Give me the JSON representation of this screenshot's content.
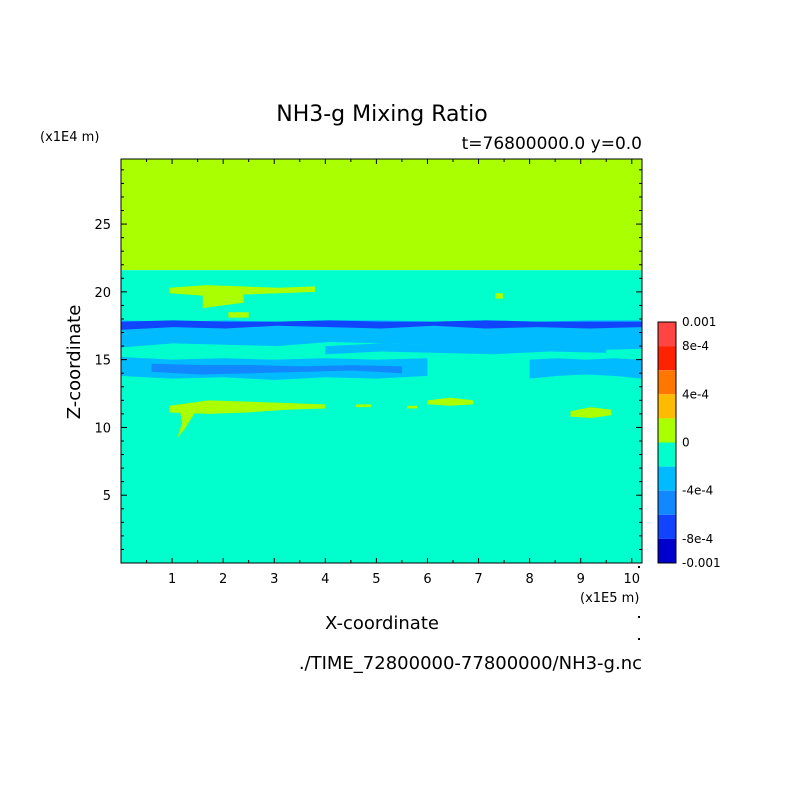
{
  "chart_data": {
    "type": "heatmap",
    "title": "NH3-g Mixing Ratio",
    "subtitle": "t=76800000.0 y=0.0",
    "xlabel": "X-coordinate",
    "ylabel": "Z-coordinate",
    "x_unit": "(x1E5 m)",
    "y_unit": "(x1E4 m)",
    "source_file": "./TIME_72800000-77800000/NH3-g.nc",
    "xlim": [
      0,
      10.2
    ],
    "ylim": [
      0,
      29.8
    ],
    "x_ticks": [
      1,
      2,
      3,
      4,
      5,
      6,
      7,
      8,
      9,
      10
    ],
    "y_ticks": [
      5,
      10,
      15,
      20,
      25
    ],
    "colorbar": {
      "min": -0.001,
      "max": 0.001,
      "tick_values": [
        0.001,
        0.0008,
        0.0004,
        0,
        -0.0004,
        -0.0008,
        -0.001
      ],
      "tick_labels": [
        "0.001",
        "8e-4",
        "4e-4",
        "0",
        "-4e-4",
        "-8e-4",
        "-0.001"
      ],
      "levels": [
        {
          "range": [
            0.0008,
            0.001
          ],
          "color": "#ff4444"
        },
        {
          "range": [
            0.0006,
            0.0008
          ],
          "color": "#ff2200"
        },
        {
          "range": [
            0.0004,
            0.0006
          ],
          "color": "#ff7700"
        },
        {
          "range": [
            0.0002,
            0.0004
          ],
          "color": "#ffbb00"
        },
        {
          "range": [
            0,
            0.0002
          ],
          "color": "#aaff00"
        },
        {
          "range": [
            -0.0002,
            0
          ],
          "color": "#00ffcc"
        },
        {
          "range": [
            -0.0004,
            -0.0002
          ],
          "color": "#00bbff"
        },
        {
          "range": [
            -0.0006,
            -0.0004
          ],
          "color": "#1188ff"
        },
        {
          "range": [
            -0.0008,
            -0.0006
          ],
          "color": "#1144ff"
        },
        {
          "range": [
            -0.001,
            -0.0008
          ],
          "color": "#0000cc"
        }
      ]
    },
    "regions": [
      {
        "level": 4,
        "shape": "rect",
        "x": [
          0,
          10.2
        ],
        "z": [
          21.6,
          29.8
        ]
      },
      {
        "level": 5,
        "shape": "rect",
        "x": [
          0,
          10.2
        ],
        "z": [
          0,
          21.6
        ]
      },
      {
        "level": 6,
        "shape": "band",
        "x": [
          0,
          10.2
        ],
        "z_bottom": [
          15.9,
          16.2,
          16.1,
          16.0,
          16.3,
          16.2,
          16.1,
          15.9,
          15.9,
          15.7,
          15.8
        ],
        "z_top": [
          17.9,
          17.8,
          17.9,
          17.8,
          17.9,
          17.9,
          17.8,
          17.9,
          17.8,
          17.9,
          17.9
        ]
      },
      {
        "level": 8,
        "shape": "band",
        "x": [
          0,
          10.2
        ],
        "z_bottom": [
          17.2,
          17.4,
          17.3,
          17.5,
          17.4,
          17.3,
          17.5,
          17.3,
          17.4,
          17.3,
          17.4
        ],
        "z_top": [
          17.8,
          17.9,
          17.8,
          17.8,
          17.9,
          17.8,
          17.8,
          17.9,
          17.8,
          17.8,
          17.8
        ]
      },
      {
        "level": 6,
        "shape": "band",
        "x": [
          0,
          6.0
        ],
        "z_bottom": [
          13.8,
          13.6,
          13.7,
          13.5,
          13.7,
          13.6,
          13.8
        ],
        "z_top": [
          15.2,
          15.0,
          15.1,
          15.0,
          15.1,
          15.0,
          15.1
        ]
      },
      {
        "level": 7,
        "shape": "band",
        "x": [
          0.6,
          5.5
        ],
        "z_bottom": [
          14.1,
          13.9,
          14.0,
          14.1,
          14.2,
          14.0
        ],
        "z_top": [
          14.7,
          14.6,
          14.6,
          14.5,
          14.6,
          14.5
        ]
      },
      {
        "level": 6,
        "shape": "band",
        "x": [
          8.0,
          10.2
        ],
        "z_bottom": [
          13.6,
          13.8,
          13.9,
          13.8,
          13.6
        ],
        "z_top": [
          15.0,
          15.1,
          15.0,
          15.1,
          15.0
        ]
      },
      {
        "level": 6,
        "shape": "band",
        "x": [
          4.0,
          9.5
        ],
        "z_bottom": [
          15.4,
          15.6,
          15.5,
          15.4,
          15.6,
          15.5
        ],
        "z_top": [
          16.0,
          16.2,
          16.1,
          16.1,
          16.0,
          16.0
        ]
      },
      {
        "level": 4,
        "shape": "band",
        "x": [
          0.95,
          3.8
        ],
        "z_bottom": [
          19.9,
          19.7,
          19.8,
          19.9,
          20.0
        ],
        "z_top": [
          20.3,
          20.5,
          20.4,
          20.3,
          20.4
        ]
      },
      {
        "level": 4,
        "shape": "band",
        "x": [
          1.6,
          2.4
        ],
        "z_bottom": [
          18.8,
          19.0,
          19.2
        ],
        "z_top": [
          19.8,
          20.0,
          19.9
        ]
      },
      {
        "level": 4,
        "shape": "band",
        "x": [
          0.95,
          4.0
        ],
        "z_bottom": [
          11.1,
          11.0,
          11.1,
          11.3,
          11.4
        ],
        "z_top": [
          11.6,
          12.0,
          11.9,
          11.8,
          11.7
        ]
      },
      {
        "level": 4,
        "shape": "poly",
        "points": [
          [
            1.15,
            11.2
          ],
          [
            1.45,
            11.1
          ],
          [
            1.25,
            9.9
          ],
          [
            1.1,
            9.2
          ],
          [
            1.2,
            10.4
          ]
        ]
      },
      {
        "level": 4,
        "shape": "band",
        "x": [
          6.0,
          6.9
        ],
        "z_bottom": [
          11.7,
          11.6,
          11.7
        ],
        "z_top": [
          12.0,
          12.2,
          12.0
        ]
      },
      {
        "level": 4,
        "shape": "band",
        "x": [
          8.8,
          9.6
        ],
        "z_bottom": [
          10.8,
          10.7,
          10.9
        ],
        "z_top": [
          11.2,
          11.5,
          11.3
        ]
      },
      {
        "level": 4,
        "shape": "rect",
        "x": [
          4.6,
          4.9
        ],
        "z": [
          11.5,
          11.7
        ]
      },
      {
        "level": 4,
        "shape": "rect",
        "x": [
          5.6,
          5.8
        ],
        "z": [
          11.4,
          11.6
        ]
      },
      {
        "level": 4,
        "shape": "rect",
        "x": [
          7.33,
          7.48
        ],
        "z": [
          19.5,
          19.9
        ]
      },
      {
        "level": 4,
        "shape": "rect",
        "x": [
          2.1,
          2.5
        ],
        "z": [
          18.1,
          18.5
        ]
      }
    ]
  }
}
